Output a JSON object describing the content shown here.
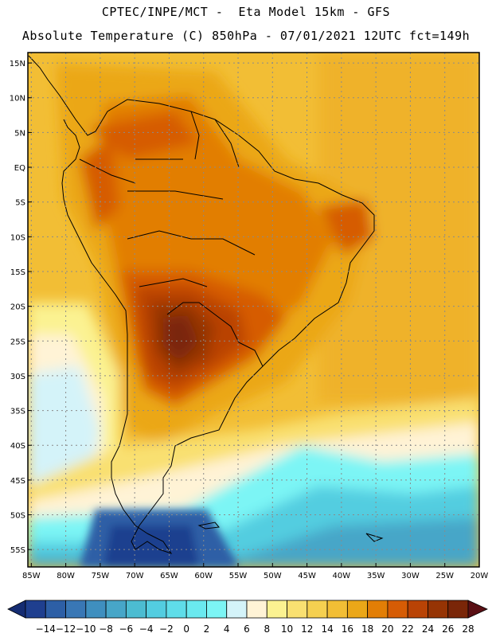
{
  "header": {
    "line1": "CPTEC/INPE/MCT -  Eta Model 15km - GFS",
    "line2": "Absolute Temperature (C) 850hPa - 07/01/2021 12UTC fct=149h"
  },
  "map": {
    "lat_labels": [
      "15N",
      "10N",
      "5N",
      "EQ",
      "5S",
      "10S",
      "15S",
      "20S",
      "25S",
      "30S",
      "35S",
      "40S",
      "45S",
      "50S",
      "55S"
    ],
    "lon_labels": [
      "85W",
      "80W",
      "75W",
      "70W",
      "65W",
      "60W",
      "55W",
      "50W",
      "45W",
      "40W",
      "35W",
      "30W",
      "25W",
      "20W"
    ],
    "lat_values": [
      15,
      10,
      5,
      0,
      -5,
      -10,
      -15,
      -20,
      -25,
      -30,
      -35,
      -40,
      -45,
      -50,
      -55
    ],
    "lon_values": [
      -85,
      -80,
      -75,
      -70,
      -65,
      -60,
      -55,
      -50,
      -45,
      -40,
      -35,
      -30,
      -25,
      -20
    ],
    "extent": {
      "lon_min": -85.5,
      "lon_max": -20,
      "lat_min": -57.5,
      "lat_max": 16.5
    }
  },
  "legend": {
    "labels": [
      "-14",
      "-12",
      "-10",
      "-8",
      "-6",
      "-4",
      "-2",
      "0",
      "2",
      "4",
      "6",
      "8",
      "10",
      "12",
      "14",
      "16",
      "18",
      "20",
      "22",
      "24",
      "26",
      "28"
    ],
    "colors": [
      "#1f3f8f",
      "#2d5fa6",
      "#3977b5",
      "#3f8fbf",
      "#47a6c8",
      "#4cbcd1",
      "#53cde0",
      "#5fdde9",
      "#6ae9ef",
      "#7cf5f5",
      "#d4f3f9",
      "#fff3d6",
      "#fbf291",
      "#f9e071",
      "#f5d050",
      "#f2be35",
      "#eba718",
      "#e27e06",
      "#d65c05",
      "#b94305",
      "#963404",
      "#7a2608"
    ],
    "under_color": "#152c72",
    "over_color": "#5a0f14"
  }
}
